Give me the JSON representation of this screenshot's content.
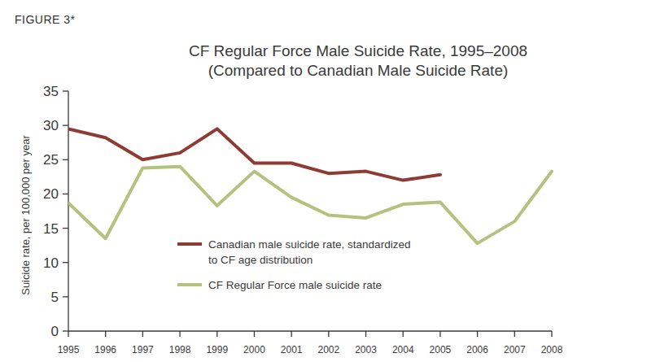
{
  "chart_data": {
    "type": "line",
    "figure_label": "FIGURE 3*",
    "title": "CF Regular Force Male Suicide Rate, 1995–2008",
    "subtitle": "(Compared to Canadian Male Suicide Rate)",
    "y_label": "Suicide rate, per 100,000 per year",
    "x": [
      1995,
      1996,
      1997,
      1998,
      1999,
      2000,
      2001,
      2002,
      2003,
      2004,
      2005,
      2006,
      2007,
      2008
    ],
    "series": [
      {
        "name": "Canadian male suicide rate, standardized to CF age distribution",
        "color": "#8e3b33",
        "values": [
          29.5,
          28.2,
          25,
          26,
          29.5,
          24.5,
          24.5,
          23,
          23.3,
          22,
          22.8,
          null,
          null,
          null
        ]
      },
      {
        "name": "CF Regular Force male suicide rate",
        "color": "#b4c17f",
        "values": [
          18.7,
          13.5,
          23.8,
          24,
          18.3,
          23.3,
          19.5,
          16.9,
          16.5,
          18.5,
          18.8,
          12.8,
          16,
          23.3
        ]
      }
    ],
    "xlim": [
      1995,
      2008
    ],
    "xticks": [
      1995,
      1996,
      1997,
      1998,
      1999,
      2000,
      2001,
      2002,
      2003,
      2004,
      2005,
      2006,
      2007,
      2008
    ],
    "ylim": [
      0,
      35
    ],
    "yticks": [
      0,
      5,
      10,
      15,
      20,
      25,
      30,
      35
    ],
    "grid": false,
    "legend": "bottom"
  }
}
